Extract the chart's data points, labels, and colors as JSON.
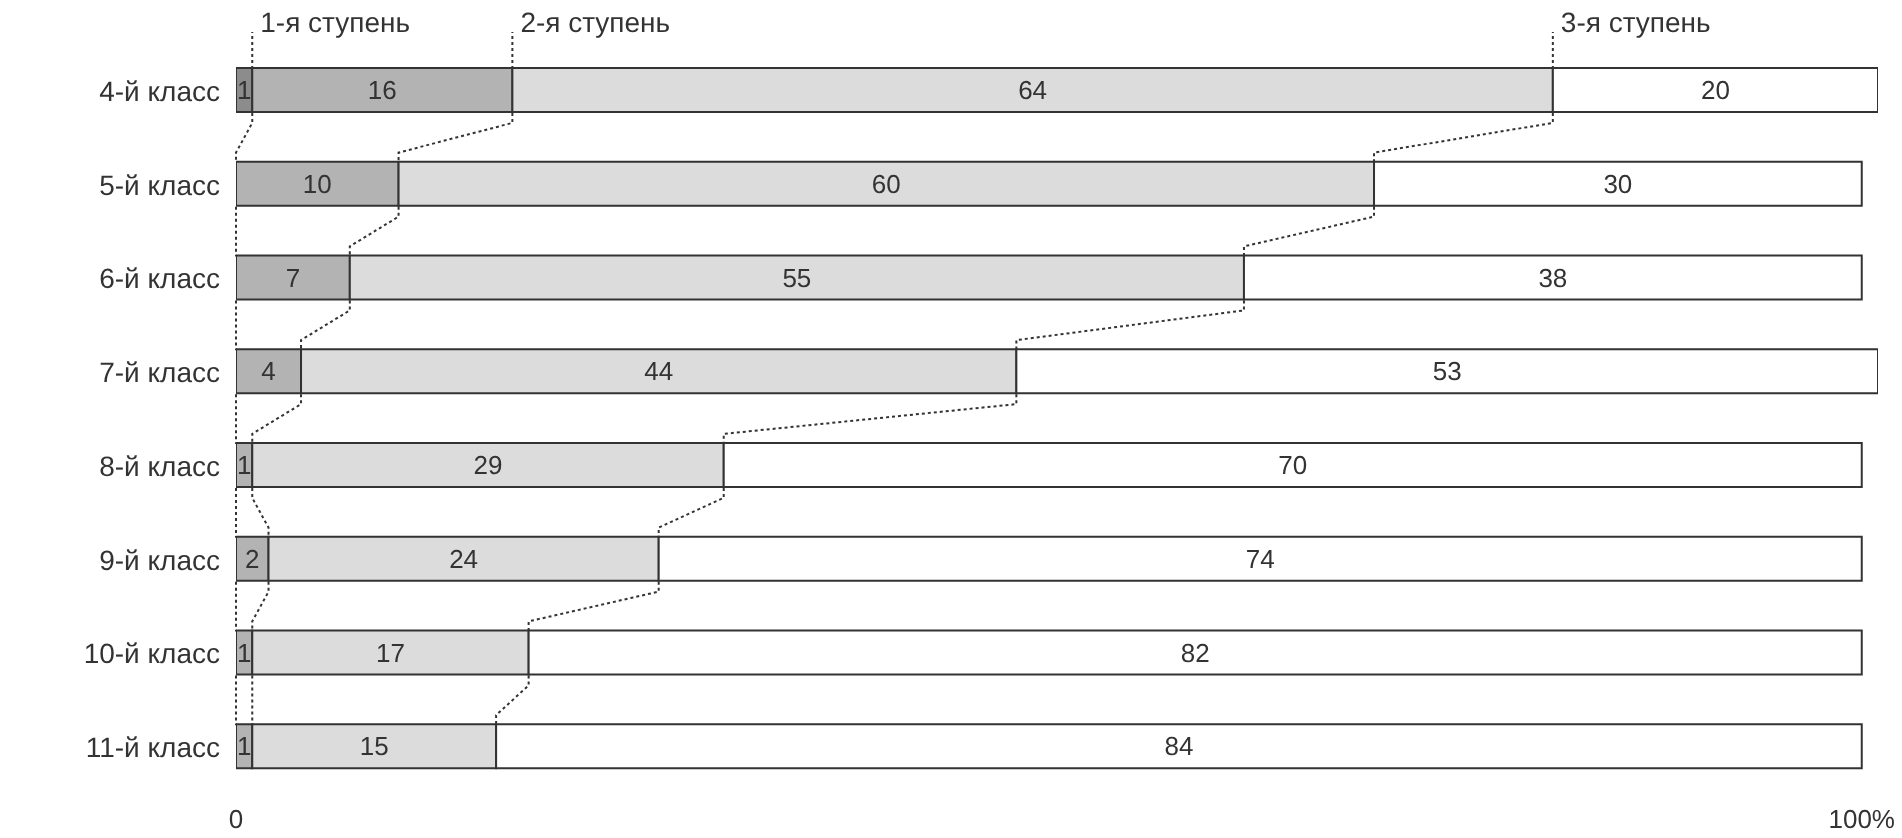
{
  "chart_data": {
    "type": "bar",
    "orientation": "horizontal",
    "stacked": true,
    "data_labels": true,
    "categories": [
      "4-й класс",
      "5-й класс",
      "6-й класс",
      "7-й класс",
      "8-й класс",
      "9-й класс",
      "10-й класс",
      "11-й класс"
    ],
    "series": [
      {
        "color": "#8c8c8c",
        "values": [
          1,
          null,
          null,
          null,
          null,
          null,
          null,
          null
        ]
      },
      {
        "color": "#b3b3b3",
        "values": [
          16,
          10,
          7,
          4,
          1,
          2,
          1,
          1
        ]
      },
      {
        "color": "#dcdcdc",
        "values": [
          64,
          60,
          55,
          44,
          29,
          24,
          17,
          15
        ]
      },
      {
        "color": "#ffffff",
        "values": [
          20,
          30,
          38,
          53,
          70,
          74,
          82,
          84
        ]
      }
    ],
    "xlim": [
      0,
      101
    ],
    "xticks": [
      0,
      {
        "value": 100,
        "label": "100%"
      }
    ],
    "annotations": [
      {
        "text": "1-я ступень",
        "x": 1,
        "y": "4-й класс"
      },
      {
        "text": "2-я ступень",
        "x": 17,
        "y": "4-й класс"
      },
      {
        "text": "3-я ступень",
        "x": 81,
        "y": "4-й класс"
      }
    ]
  }
}
